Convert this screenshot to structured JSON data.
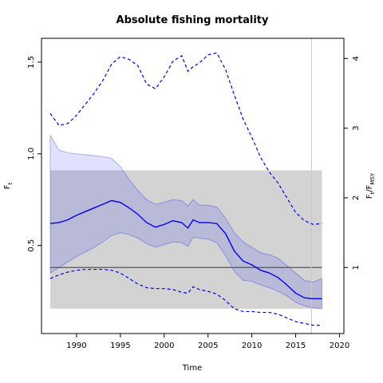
{
  "chart_data": {
    "type": "line",
    "title": "Absolute fishing mortality",
    "xlabel": "Time",
    "ylabel": "F",
    "ylabel_sub": "t",
    "y2label_main": "F",
    "y2label_sub1": "t",
    "y2label_mid": "/F",
    "y2label_sub2": "MSY",
    "xlim": [
      1986,
      2020.5
    ],
    "ylim": [
      0.02,
      1.63
    ],
    "y2_per_y": 2.6316,
    "x_ticks": [
      1990,
      1995,
      2000,
      2005,
      2010,
      2015,
      2020
    ],
    "y_ticks": [
      0.5,
      1.0,
      1.5
    ],
    "y_tick_labels": [
      "0.5",
      "1.0",
      "1.5"
    ],
    "y2_ticks": [
      1,
      2,
      3,
      4
    ],
    "grid": false,
    "colors": {
      "estimate": "#0000ff",
      "ci_fill": "#0000ff",
      "msy_band": "#d3d3d3",
      "fmsy_line": "#555555",
      "vline": "#c8c8c8"
    },
    "fmsy_value": 0.38,
    "fmsy_band": {
      "x": [
        1987,
        2018
      ],
      "y": [
        0.155,
        0.91
      ]
    },
    "vline_x": 2016.8,
    "series": [
      {
        "role": "estimate",
        "style": "solid",
        "x": [
          1987,
          1988,
          1989,
          1990,
          1991,
          1992,
          1993,
          1994,
          1995,
          1996,
          1997,
          1998,
          1999,
          2000,
          2001,
          2002,
          2002.7,
          2003.3,
          2004,
          2005,
          2006,
          2007,
          2008,
          2009,
          2010,
          2011,
          2012,
          2013,
          2014,
          2015,
          2016,
          2016.8,
          2018
        ],
        "y": [
          0.62,
          0.625,
          0.64,
          0.665,
          0.685,
          0.705,
          0.725,
          0.745,
          0.735,
          0.705,
          0.67,
          0.625,
          0.6,
          0.615,
          0.635,
          0.625,
          0.595,
          0.64,
          0.625,
          0.625,
          0.62,
          0.565,
          0.47,
          0.415,
          0.395,
          0.365,
          0.35,
          0.325,
          0.285,
          0.24,
          0.215,
          0.21,
          0.21
        ]
      },
      {
        "role": "ci_upper",
        "style": "shaded",
        "x": [
          1987,
          1988,
          1989,
          1990,
          1991,
          1992,
          1993,
          1994,
          1995,
          1996,
          1997,
          1998,
          1999,
          2000,
          2001,
          2002,
          2002.7,
          2003.3,
          2004,
          2005,
          2006,
          2007,
          2008,
          2009,
          2010,
          2011,
          2012,
          2013,
          2014,
          2015,
          2016,
          2017,
          2018
        ],
        "y": [
          1.1,
          1.02,
          1.005,
          1.0,
          0.995,
          0.99,
          0.985,
          0.975,
          0.93,
          0.86,
          0.8,
          0.75,
          0.725,
          0.735,
          0.75,
          0.745,
          0.715,
          0.75,
          0.72,
          0.72,
          0.71,
          0.65,
          0.57,
          0.52,
          0.49,
          0.46,
          0.45,
          0.43,
          0.39,
          0.35,
          0.31,
          0.3,
          0.32
        ]
      },
      {
        "role": "ci_lower",
        "style": "shaded",
        "x": [
          1987,
          1988,
          1989,
          1990,
          1991,
          1992,
          1993,
          1994,
          1995,
          1996,
          1997,
          1998,
          1999,
          2000,
          2001,
          2002,
          2002.7,
          2003.3,
          2004,
          2005,
          2006,
          2007,
          2008,
          2009,
          2010,
          2011,
          2012,
          2013,
          2014,
          2015,
          2016,
          2017,
          2018
        ],
        "y": [
          0.35,
          0.38,
          0.41,
          0.44,
          0.465,
          0.49,
          0.52,
          0.555,
          0.57,
          0.56,
          0.54,
          0.51,
          0.49,
          0.505,
          0.52,
          0.515,
          0.495,
          0.545,
          0.54,
          0.535,
          0.515,
          0.445,
          0.36,
          0.31,
          0.305,
          0.285,
          0.27,
          0.25,
          0.225,
          0.19,
          0.17,
          0.16,
          0.155
        ]
      },
      {
        "role": "upper_dashed",
        "style": "dashed",
        "x": [
          1987,
          1988,
          1989,
          1990,
          1991,
          1992,
          1993,
          1994,
          1995,
          1996,
          1997,
          1998,
          1999,
          2000,
          2001,
          2002,
          2002.7,
          2003.3,
          2004,
          2005,
          2006,
          2007,
          2008,
          2009,
          2010,
          2011,
          2012,
          2013,
          2014,
          2015,
          2016,
          2017,
          2018
        ],
        "y": [
          1.22,
          1.155,
          1.165,
          1.21,
          1.27,
          1.33,
          1.4,
          1.49,
          1.53,
          1.515,
          1.48,
          1.38,
          1.355,
          1.42,
          1.505,
          1.535,
          1.45,
          1.475,
          1.495,
          1.54,
          1.55,
          1.46,
          1.32,
          1.19,
          1.09,
          0.98,
          0.9,
          0.84,
          0.76,
          0.68,
          0.635,
          0.615,
          0.62
        ]
      },
      {
        "role": "lower_dashed",
        "style": "dashed",
        "x": [
          1987,
          1988,
          1989,
          1990,
          1991,
          1992,
          1993,
          1994,
          1995,
          1996,
          1997,
          1998,
          1999,
          2000,
          2001,
          2002,
          2002.7,
          2003.3,
          2004,
          2005,
          2006,
          2007,
          2008,
          2009,
          2010,
          2011,
          2012,
          2013,
          2014,
          2015,
          2016,
          2017,
          2018
        ],
        "y": [
          0.32,
          0.34,
          0.355,
          0.365,
          0.37,
          0.37,
          0.37,
          0.365,
          0.35,
          0.32,
          0.29,
          0.27,
          0.265,
          0.265,
          0.26,
          0.245,
          0.24,
          0.275,
          0.26,
          0.25,
          0.235,
          0.2,
          0.155,
          0.14,
          0.14,
          0.135,
          0.135,
          0.125,
          0.105,
          0.085,
          0.075,
          0.065,
          0.065
        ]
      }
    ]
  }
}
